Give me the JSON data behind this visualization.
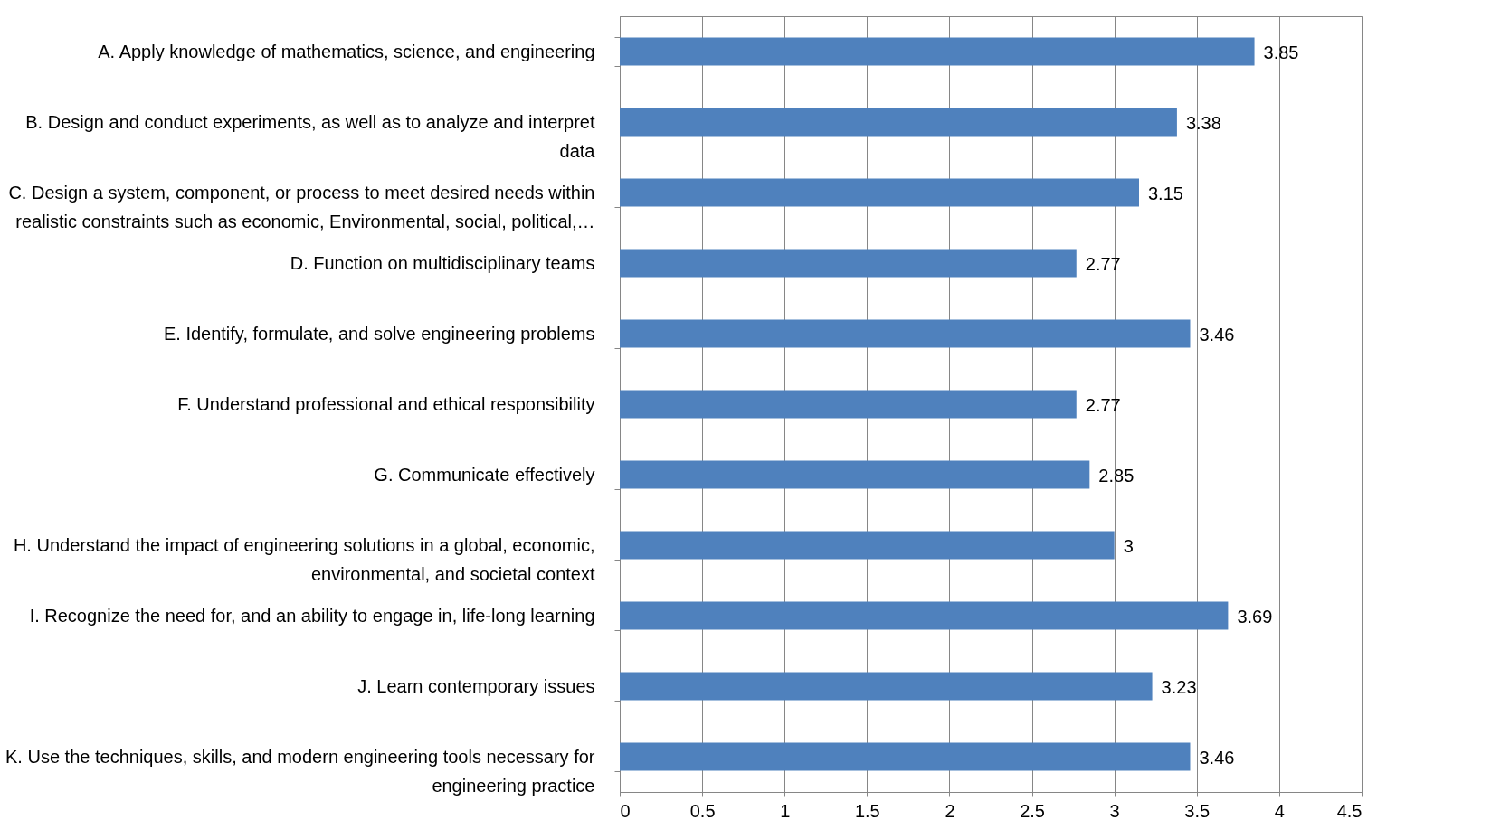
{
  "chart_data": {
    "type": "bar",
    "orientation": "horizontal",
    "categories": [
      "A. Apply knowledge of mathematics, science, and engineering",
      "B. Design and conduct experiments, as well as to analyze and interpret data",
      "C. Design a system, component, or process to meet desired needs within realistic constraints such as economic, Environmental, social, political,…",
      "D. Function on multidisciplinary teams",
      "E. Identify, formulate, and solve engineering problems",
      "F. Understand professional and ethical responsibility",
      "G. Communicate effectively",
      "H. Understand the impact of engineering solutions in a global, economic, environmental, and societal context",
      "I. Recognize the need for, and an ability to engage in, life-long learning",
      "J. Learn contemporary issues",
      "K. Use the techniques, skills, and modern engineering tools necessary for engineering practice"
    ],
    "values": [
      3.85,
      3.38,
      3.15,
      2.77,
      3.46,
      2.77,
      2.85,
      3,
      3.69,
      3.23,
      3.46
    ],
    "color": "#4f81bd",
    "data_labels": true,
    "grid": "x",
    "xlim": [
      0,
      4.5
    ],
    "xticks": [
      0,
      0.5,
      1,
      1.5,
      2,
      2.5,
      3,
      3.5,
      4,
      4.5
    ]
  }
}
